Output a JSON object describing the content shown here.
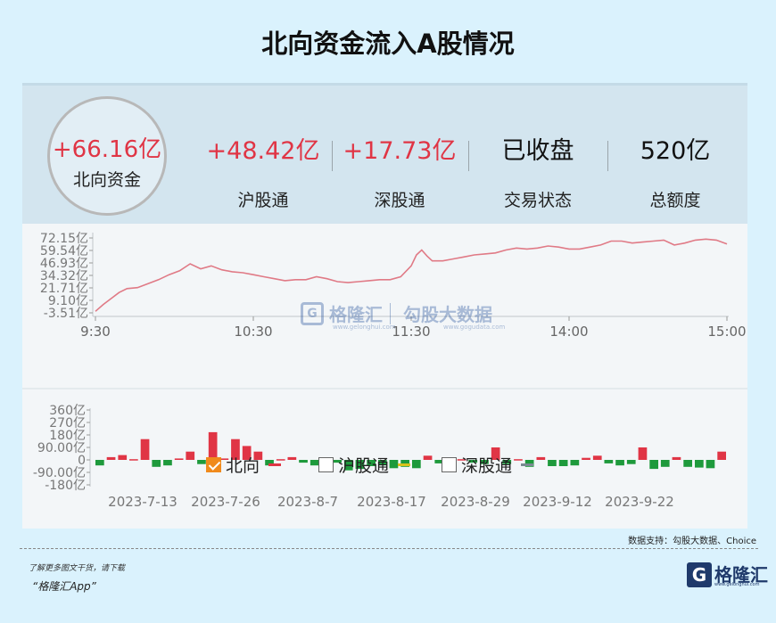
{
  "title": "北向资金流入A股情况",
  "summary": {
    "north": {
      "value": "+66.16亿",
      "label": "北向资金"
    },
    "sh": {
      "value": "+48.42亿",
      "label": "沪股通"
    },
    "sz": {
      "value": "+17.73亿",
      "label": "深股通"
    },
    "status": {
      "value": "已收盘",
      "label": "交易状态"
    },
    "quota": {
      "value": "520亿",
      "label": "总额度"
    }
  },
  "legend": [
    {
      "label": "北向",
      "checked": true,
      "color": "#e03545"
    },
    {
      "label": "沪股通",
      "checked": false,
      "color": "#d8c21a"
    },
    {
      "label": "深股通",
      "checked": false,
      "color": "#7a8a92"
    }
  ],
  "watermark": {
    "brand": "格隆汇",
    "brand_url": "www.gelonghui.com",
    "partner": "勾股大数据",
    "partner_url": "www.gogudata.com"
  },
  "source": "数据支持：勾股大数据、Choice",
  "footer": {
    "line1": "了解更多图文干货，请下载",
    "line2": "“格隆汇App”",
    "brand": "格隆汇",
    "brand_logo": "G",
    "brand_url": "www.gelonghui.com"
  },
  "colors": {
    "up": "#e03545",
    "down": "#1e9a3c",
    "line": "#e07a86"
  },
  "chart_data": [
    {
      "type": "line",
      "title": "",
      "x_ticks": [
        "9:30",
        "10:30",
        "11:30",
        "14:00",
        "15:00"
      ],
      "y_ticks": [
        "72.15亿",
        "59.54亿",
        "46.93亿",
        "34.32亿",
        "21.71亿",
        "9.10亿",
        "-3.51亿"
      ],
      "ylim": [
        -3.51,
        72.15
      ],
      "series": [
        {
          "x": [
            0,
            3,
            6,
            9,
            12,
            16,
            20,
            24,
            28,
            32,
            36,
            40,
            44,
            48,
            52,
            56,
            60,
            64,
            68,
            72,
            76,
            80,
            84,
            88,
            92,
            96,
            100,
            104,
            108,
            112,
            116,
            120,
            122,
            124,
            126,
            128,
            132,
            136,
            140,
            144,
            148,
            152,
            156,
            160,
            164,
            168,
            172,
            176,
            180,
            184,
            188,
            192,
            196,
            200,
            204,
            208,
            212,
            216,
            220,
            224,
            228,
            232,
            236,
            240
          ],
          "values": [
            -2,
            5,
            11,
            17,
            21,
            22,
            26,
            30,
            35,
            39,
            46,
            41,
            44,
            40,
            38,
            37,
            35,
            33,
            31,
            29,
            30,
            30,
            33,
            31,
            28,
            27,
            28,
            29,
            30,
            30,
            33,
            44,
            55,
            60,
            54,
            49,
            49,
            51,
            53,
            55,
            56,
            57,
            60,
            62,
            61,
            62,
            64,
            63,
            61,
            61,
            63,
            65,
            69,
            69,
            67,
            68,
            69,
            70,
            65,
            67,
            70,
            71,
            70,
            66
          ]
        }
      ]
    },
    {
      "type": "bar",
      "title": "",
      "y_ticks": [
        "360亿",
        "270亿",
        "180亿",
        "90.00亿",
        "0",
        "-90.00亿",
        "-180亿"
      ],
      "ylim": [
        -180,
        360
      ],
      "x_ticks": [
        "2023-7-13",
        "2023-7-26",
        "2023-8-7",
        "2023-8-17",
        "2023-8-29",
        "2023-9-12",
        "2023-9-22"
      ],
      "values": [
        -40,
        20,
        35,
        5,
        150,
        -50,
        -40,
        10,
        60,
        -30,
        200,
        10,
        150,
        100,
        60,
        -40,
        5,
        20,
        -20,
        -40,
        -55,
        -20,
        -75,
        -65,
        -45,
        -40,
        -60,
        -50,
        -60,
        30,
        -25,
        -70,
        5,
        -20,
        -30,
        90,
        -30,
        5,
        -50,
        20,
        -45,
        -45,
        -40,
        15,
        30,
        -25,
        -40,
        -30,
        90,
        -65,
        -50,
        20,
        -50,
        -55,
        -60,
        60
      ]
    }
  ]
}
